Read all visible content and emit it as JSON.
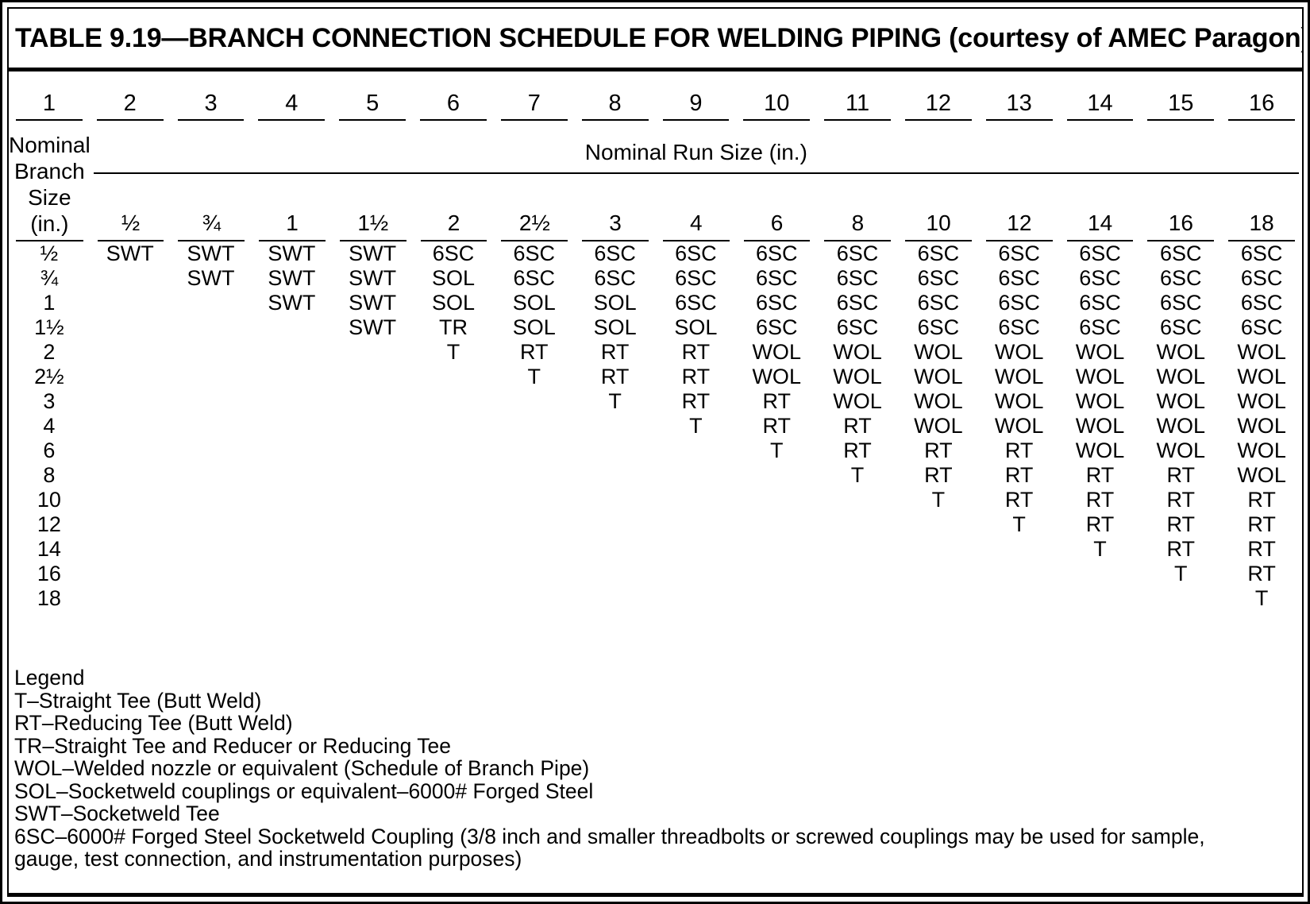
{
  "title": "TABLE 9.19—BRANCH CONNECTION SCHEDULE FOR WELDING PIPING (courtesy of AMEC Paragon)",
  "table": {
    "column_numbers": [
      "1",
      "2",
      "3",
      "4",
      "5",
      "6",
      "7",
      "8",
      "9",
      "10",
      "11",
      "12",
      "13",
      "14",
      "15",
      "16"
    ],
    "branch_header_lines": [
      "Nominal",
      "Branch",
      "Size",
      "(in.)"
    ],
    "run_header": "Nominal Run Size (in.)",
    "run_sizes": [
      "½",
      "¾",
      "1",
      "1½",
      "2",
      "2½",
      "3",
      "4",
      "6",
      "8",
      "10",
      "12",
      "14",
      "16",
      "18"
    ],
    "rows": [
      {
        "branch": "½",
        "cells": [
          "SWT",
          "SWT",
          "SWT",
          "SWT",
          "6SC",
          "6SC",
          "6SC",
          "6SC",
          "6SC",
          "6SC",
          "6SC",
          "6SC",
          "6SC",
          "6SC",
          "6SC"
        ]
      },
      {
        "branch": "¾",
        "cells": [
          "",
          "SWT",
          "SWT",
          "SWT",
          "SOL",
          "6SC",
          "6SC",
          "6SC",
          "6SC",
          "6SC",
          "6SC",
          "6SC",
          "6SC",
          "6SC",
          "6SC"
        ]
      },
      {
        "branch": "1",
        "cells": [
          "",
          "",
          "SWT",
          "SWT",
          "SOL",
          "SOL",
          "SOL",
          "6SC",
          "6SC",
          "6SC",
          "6SC",
          "6SC",
          "6SC",
          "6SC",
          "6SC"
        ]
      },
      {
        "branch": "1½",
        "cells": [
          "",
          "",
          "",
          "SWT",
          "TR",
          "SOL",
          "SOL",
          "SOL",
          "6SC",
          "6SC",
          "6SC",
          "6SC",
          "6SC",
          "6SC",
          "6SC"
        ]
      },
      {
        "branch": "2",
        "cells": [
          "",
          "",
          "",
          "",
          "T",
          "RT",
          "RT",
          "RT",
          "WOL",
          "WOL",
          "WOL",
          "WOL",
          "WOL",
          "WOL",
          "WOL"
        ]
      },
      {
        "branch": "2½",
        "cells": [
          "",
          "",
          "",
          "",
          "",
          "T",
          "RT",
          "RT",
          "WOL",
          "WOL",
          "WOL",
          "WOL",
          "WOL",
          "WOL",
          "WOL"
        ]
      },
      {
        "branch": "3",
        "cells": [
          "",
          "",
          "",
          "",
          "",
          "",
          "T",
          "RT",
          "RT",
          "WOL",
          "WOL",
          "WOL",
          "WOL",
          "WOL",
          "WOL"
        ]
      },
      {
        "branch": "4",
        "cells": [
          "",
          "",
          "",
          "",
          "",
          "",
          "",
          "T",
          "RT",
          "RT",
          "WOL",
          "WOL",
          "WOL",
          "WOL",
          "WOL"
        ]
      },
      {
        "branch": "6",
        "cells": [
          "",
          "",
          "",
          "",
          "",
          "",
          "",
          "",
          "T",
          "RT",
          "RT",
          "RT",
          "WOL",
          "WOL",
          "WOL"
        ]
      },
      {
        "branch": "8",
        "cells": [
          "",
          "",
          "",
          "",
          "",
          "",
          "",
          "",
          "",
          "T",
          "RT",
          "RT",
          "RT",
          "RT",
          "WOL"
        ]
      },
      {
        "branch": "10",
        "cells": [
          "",
          "",
          "",
          "",
          "",
          "",
          "",
          "",
          "",
          "",
          "T",
          "RT",
          "RT",
          "RT",
          "RT"
        ]
      },
      {
        "branch": "12",
        "cells": [
          "",
          "",
          "",
          "",
          "",
          "",
          "",
          "",
          "",
          "",
          "",
          "T",
          "RT",
          "RT",
          "RT"
        ]
      },
      {
        "branch": "14",
        "cells": [
          "",
          "",
          "",
          "",
          "",
          "",
          "",
          "",
          "",
          "",
          "",
          "",
          "T",
          "RT",
          "RT"
        ]
      },
      {
        "branch": "16",
        "cells": [
          "",
          "",
          "",
          "",
          "",
          "",
          "",
          "",
          "",
          "",
          "",
          "",
          "",
          "T",
          "RT"
        ]
      },
      {
        "branch": "18",
        "cells": [
          "",
          "",
          "",
          "",
          "",
          "",
          "",
          "",
          "",
          "",
          "",
          "",
          "",
          "",
          "T"
        ]
      }
    ]
  },
  "legend": {
    "heading": "Legend",
    "entries": [
      "T–Straight Tee (Butt Weld)",
      "RT–Reducing Tee (Butt Weld)",
      "TR–Straight Tee and Reducer or Reducing Tee",
      "WOL–Welded nozzle or equivalent (Schedule of Branch Pipe)",
      "SOL–Socketweld couplings or equivalent–6000# Forged Steel",
      "SWT–Socketweld Tee",
      "6SC–6000# Forged Steel Socketweld Coupling (3/8 inch and smaller threadbolts or screwed couplings may be used for sample, gauge, test connection, and instrumentation purposes)"
    ]
  }
}
